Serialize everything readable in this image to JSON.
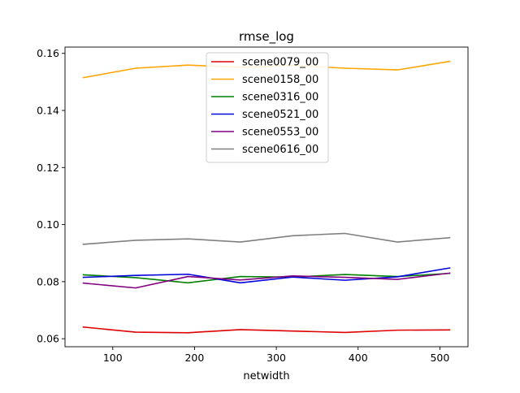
{
  "chart_data": {
    "type": "line",
    "title": "rmse_log",
    "xlabel": "netwidth",
    "ylabel": "",
    "xlim": [
      41.6,
      534.4
    ],
    "ylim": [
      0.0572,
      0.1622
    ],
    "xticks": [
      100,
      200,
      300,
      400,
      500
    ],
    "yticks": [
      0.06,
      0.08,
      0.1,
      0.12,
      0.14,
      0.16
    ],
    "ytick_labels": [
      "0.06",
      "0.08",
      "0.10",
      "0.12",
      "0.14",
      "0.16"
    ],
    "x": [
      64,
      128,
      192,
      256,
      320,
      384,
      448,
      512
    ],
    "legend_position": "upper center",
    "grid": false,
    "series": [
      {
        "name": "scene0079_00",
        "color": "#e00000",
        "values": [
          0.0641,
          0.0623,
          0.0621,
          0.0632,
          0.0627,
          0.0622,
          0.063,
          0.0631
        ]
      },
      {
        "name": "scene0158_00",
        "color": "#ffa500",
        "values": [
          0.1515,
          0.1548,
          0.1559,
          0.1551,
          0.1558,
          0.1548,
          0.1542,
          0.1572
        ]
      },
      {
        "name": "scene0316_00",
        "color": "#008000",
        "values": [
          0.0824,
          0.0814,
          0.0796,
          0.0818,
          0.0816,
          0.0825,
          0.0818,
          0.0829
        ]
      },
      {
        "name": "scene0521_00",
        "color": "#0000dd",
        "values": [
          0.0815,
          0.0822,
          0.0826,
          0.0796,
          0.0816,
          0.0805,
          0.0817,
          0.0848
        ]
      },
      {
        "name": "scene0553_00",
        "color": "#800080",
        "values": [
          0.0795,
          0.0778,
          0.0818,
          0.0806,
          0.082,
          0.0815,
          0.0808,
          0.083
        ]
      },
      {
        "name": "scene0616_00",
        "color": "#808080",
        "values": [
          0.0931,
          0.0945,
          0.095,
          0.0939,
          0.0961,
          0.0969,
          0.0939,
          0.0954
        ]
      }
    ]
  }
}
